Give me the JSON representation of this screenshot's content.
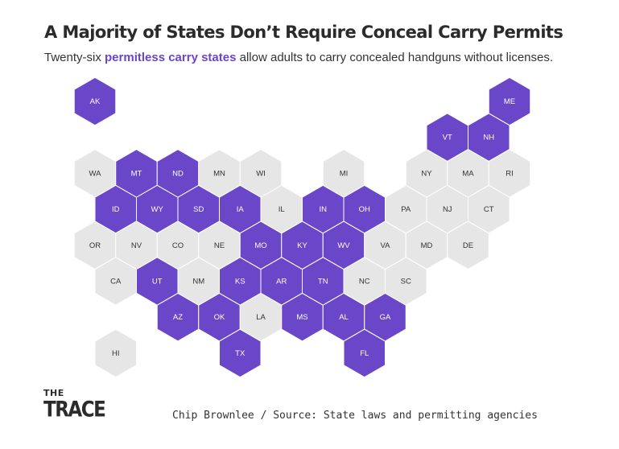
{
  "title": "A Majority of States Don’t Require Conceal Carry Permits",
  "subtitle": {
    "before": "Twenty-six ",
    "highlight": "permitless carry states",
    "after": " allow adults to carry concealed handguns without licenses."
  },
  "colors": {
    "permitless": "#6a46c8",
    "permit_required": "#e6e6e6",
    "label_permitless": "#ffffff",
    "label_permit_required": "#333333",
    "highlight_text": "#6a46c8"
  },
  "states": [
    {
      "abbr": "AK",
      "row": 0,
      "col": 0,
      "permitless": true
    },
    {
      "abbr": "ME",
      "row": 0,
      "col": 10,
      "permitless": true
    },
    {
      "abbr": "VT",
      "row": 1,
      "col": 8,
      "permitless": true
    },
    {
      "abbr": "NH",
      "row": 1,
      "col": 9,
      "permitless": true
    },
    {
      "abbr": "WA",
      "row": 2,
      "col": 0,
      "permitless": false
    },
    {
      "abbr": "MT",
      "row": 2,
      "col": 1,
      "permitless": true
    },
    {
      "abbr": "ND",
      "row": 2,
      "col": 2,
      "permitless": true
    },
    {
      "abbr": "MN",
      "row": 2,
      "col": 3,
      "permitless": false
    },
    {
      "abbr": "WI",
      "row": 2,
      "col": 4,
      "permitless": false
    },
    {
      "abbr": "MI",
      "row": 2,
      "col": 6,
      "permitless": false
    },
    {
      "abbr": "NY",
      "row": 2,
      "col": 8,
      "permitless": false
    },
    {
      "abbr": "MA",
      "row": 2,
      "col": 9,
      "permitless": false
    },
    {
      "abbr": "RI",
      "row": 2,
      "col": 10,
      "permitless": false
    },
    {
      "abbr": "ID",
      "row": 3,
      "col": 0,
      "permitless": true
    },
    {
      "abbr": "WY",
      "row": 3,
      "col": 1,
      "permitless": true
    },
    {
      "abbr": "SD",
      "row": 3,
      "col": 2,
      "permitless": true
    },
    {
      "abbr": "IA",
      "row": 3,
      "col": 3,
      "permitless": true
    },
    {
      "abbr": "IL",
      "row": 3,
      "col": 4,
      "permitless": false
    },
    {
      "abbr": "IN",
      "row": 3,
      "col": 5,
      "permitless": true
    },
    {
      "abbr": "OH",
      "row": 3,
      "col": 6,
      "permitless": true
    },
    {
      "abbr": "PA",
      "row": 3,
      "col": 7,
      "permitless": false
    },
    {
      "abbr": "NJ",
      "row": 3,
      "col": 8,
      "permitless": false
    },
    {
      "abbr": "CT",
      "row": 3,
      "col": 9,
      "permitless": false
    },
    {
      "abbr": "OR",
      "row": 4,
      "col": 0,
      "permitless": false
    },
    {
      "abbr": "NV",
      "row": 4,
      "col": 1,
      "permitless": false
    },
    {
      "abbr": "CO",
      "row": 4,
      "col": 2,
      "permitless": false
    },
    {
      "abbr": "NE",
      "row": 4,
      "col": 3,
      "permitless": false
    },
    {
      "abbr": "MO",
      "row": 4,
      "col": 4,
      "permitless": true
    },
    {
      "abbr": "KY",
      "row": 4,
      "col": 5,
      "permitless": true
    },
    {
      "abbr": "WV",
      "row": 4,
      "col": 6,
      "permitless": true
    },
    {
      "abbr": "VA",
      "row": 4,
      "col": 7,
      "permitless": false
    },
    {
      "abbr": "MD",
      "row": 4,
      "col": 8,
      "permitless": false
    },
    {
      "abbr": "DE",
      "row": 4,
      "col": 9,
      "permitless": false
    },
    {
      "abbr": "CA",
      "row": 5,
      "col": 0,
      "permitless": false
    },
    {
      "abbr": "UT",
      "row": 5,
      "col": 1,
      "permitless": true
    },
    {
      "abbr": "NM",
      "row": 5,
      "col": 2,
      "permitless": false
    },
    {
      "abbr": "KS",
      "row": 5,
      "col": 3,
      "permitless": true
    },
    {
      "abbr": "AR",
      "row": 5,
      "col": 4,
      "permitless": true
    },
    {
      "abbr": "TN",
      "row": 5,
      "col": 5,
      "permitless": true
    },
    {
      "abbr": "NC",
      "row": 5,
      "col": 6,
      "permitless": false
    },
    {
      "abbr": "SC",
      "row": 5,
      "col": 7,
      "permitless": false
    },
    {
      "abbr": "AZ",
      "row": 6,
      "col": 2,
      "permitless": true
    },
    {
      "abbr": "OK",
      "row": 6,
      "col": 3,
      "permitless": true
    },
    {
      "abbr": "LA",
      "row": 6,
      "col": 4,
      "permitless": false
    },
    {
      "abbr": "MS",
      "row": 6,
      "col": 5,
      "permitless": true
    },
    {
      "abbr": "AL",
      "row": 6,
      "col": 6,
      "permitless": true
    },
    {
      "abbr": "GA",
      "row": 6,
      "col": 7,
      "permitless": true
    },
    {
      "abbr": "HI",
      "row": 7,
      "col": 0,
      "permitless": false
    },
    {
      "abbr": "TX",
      "row": 7,
      "col": 3,
      "permitless": true
    },
    {
      "abbr": "FL",
      "row": 7,
      "col": 6,
      "permitless": true
    }
  ],
  "logo": {
    "top": "THE",
    "bottom": "TRACE"
  },
  "credit": "Chip Brownlee / Source: State laws and permitting agencies"
}
